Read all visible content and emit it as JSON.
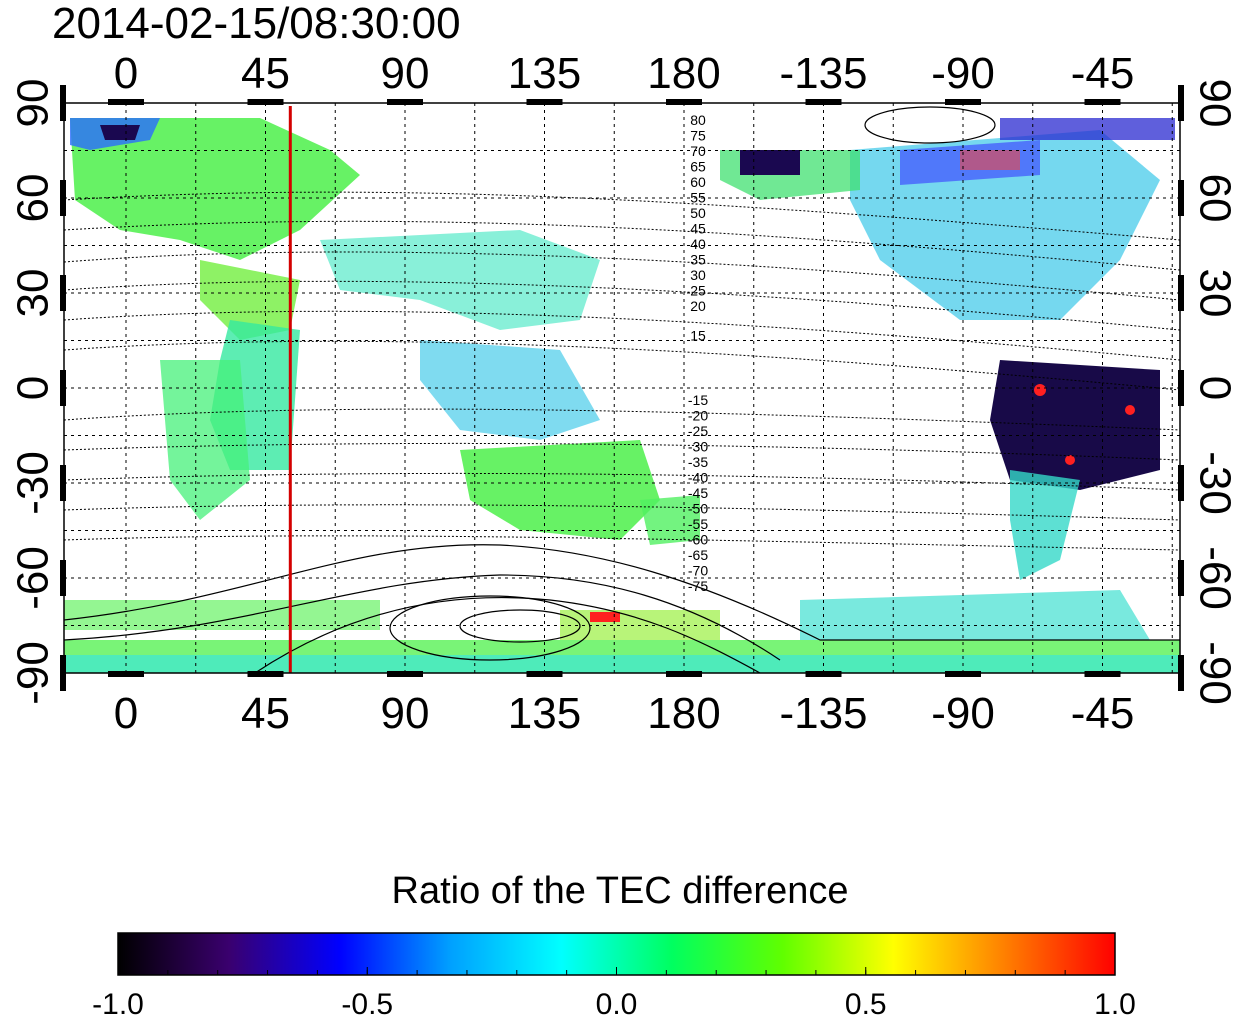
{
  "timestamp": "2014-02-15/08:30:00",
  "map": {
    "lon_ticks": [
      "0",
      "45",
      "90",
      "135",
      "180",
      "-135",
      "-90",
      "-45"
    ],
    "lat_ticks": [
      "90",
      "60",
      "30",
      "0",
      "-30",
      "-60",
      "-90"
    ],
    "lon_values": [
      0,
      45,
      90,
      135,
      180,
      225,
      270,
      315
    ],
    "lat_values": [
      90,
      60,
      30,
      0,
      -30,
      -60,
      -90
    ],
    "lon_range": [
      -20,
      340
    ],
    "lat_range": [
      -90,
      90
    ],
    "marker_longitude": 53,
    "marker_color": "#d40000",
    "contour_labels_north": [
      "80",
      "75",
      "70",
      "65",
      "60",
      "55",
      "50",
      "45",
      "40",
      "35",
      "30",
      "25",
      "20",
      "15"
    ],
    "contour_labels_south": [
      "-15",
      "-20",
      "-25",
      "-30",
      "-35",
      "-40",
      "-45",
      "-50",
      "-55",
      "-60",
      "-65",
      "-70",
      "-75"
    ]
  },
  "colorbar": {
    "title": "Ratio of the TEC difference",
    "ticks": [
      "-1.0",
      "-0.5",
      "0.0",
      "0.5",
      "1.0"
    ],
    "range": [
      -1.0,
      1.0
    ],
    "colors": [
      "#000000",
      "#3a006e",
      "#0000ff",
      "#00a0ff",
      "#00ffff",
      "#00ff60",
      "#60ff00",
      "#ffff00",
      "#ff8000",
      "#ff0000"
    ]
  }
}
